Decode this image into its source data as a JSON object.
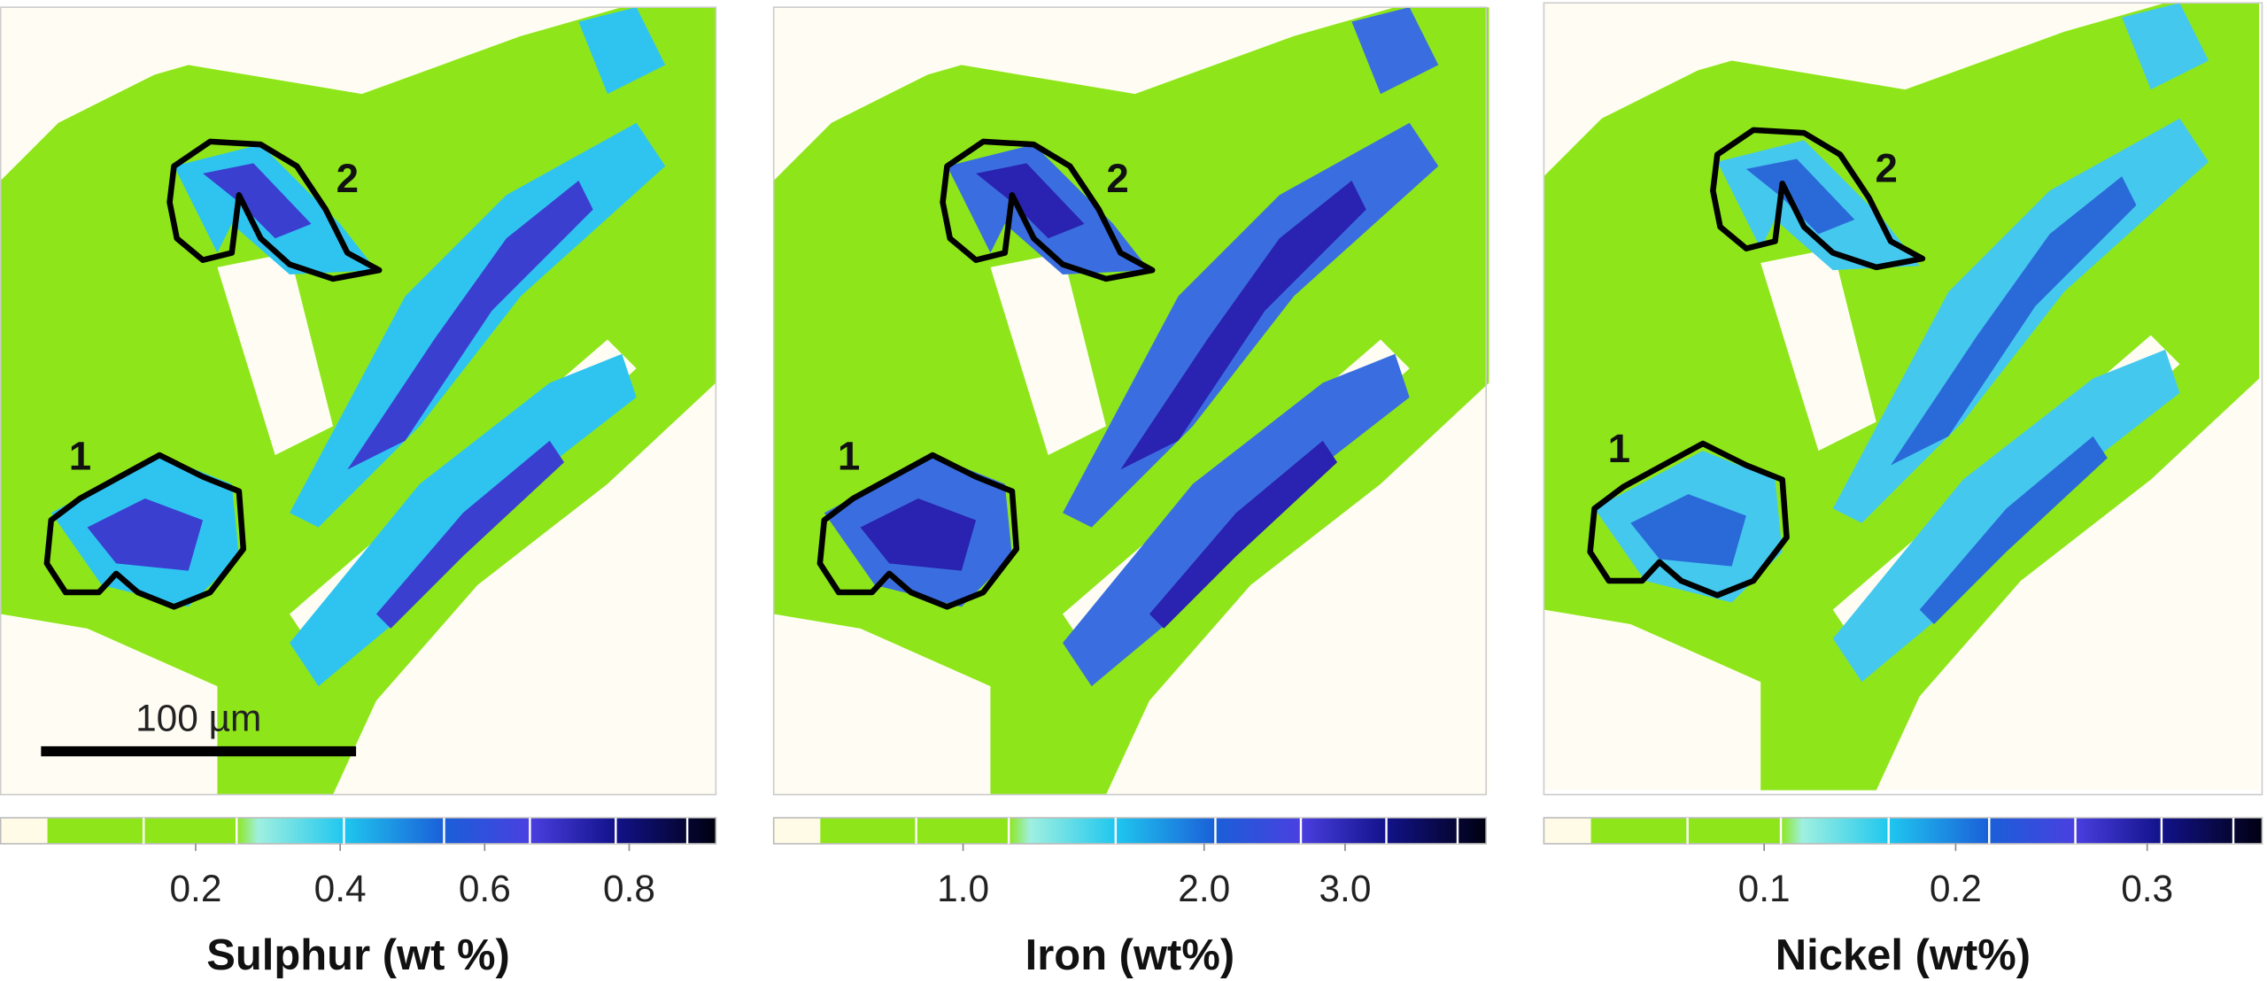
{
  "panels": [
    {
      "element_label": "Sulphur (wt %)",
      "regions": [
        "1",
        "2"
      ],
      "scale_bar": "100 µm",
      "colorbar": {
        "lim": [
          -0.07,
          0.92
        ],
        "ticks": [
          0.2,
          0.4,
          0.6,
          0.8
        ]
      }
    },
    {
      "element_label": "Iron (wt%)",
      "regions": [
        "1",
        "2"
      ],
      "colorbar": {
        "lim": [
          0.58,
          4.5
        ],
        "log": true,
        "ticks": [
          {
            "value": 1,
            "label": "1.0"
          },
          {
            "value": 2,
            "label": "2.0"
          },
          {
            "value": 3,
            "label": "3.0"
          }
        ]
      }
    },
    {
      "element_label": "Nickel (wt%)",
      "regions": [
        "1",
        "2"
      ],
      "colorbar": {
        "lim": [
          -0.015,
          0.36
        ],
        "ticks": [
          0.1,
          0.2,
          0.3
        ]
      }
    }
  ]
}
